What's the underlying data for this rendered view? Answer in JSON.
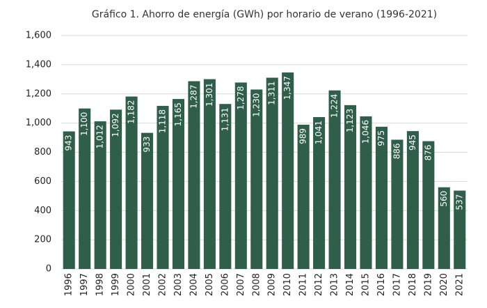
{
  "chart_data": {
    "type": "bar",
    "title": "Gráfico 1. Ahorro de energía (GWh) por horario de verano (1996-2021)",
    "categories": [
      "1996",
      "1997",
      "1998",
      "1999",
      "2000",
      "2001",
      "2002",
      "2003",
      "2004",
      "2005",
      "2006",
      "2007",
      "2008",
      "2009",
      "2010",
      "2011",
      "2012",
      "2013",
      "2014",
      "2015",
      "2016",
      "2017",
      "2018",
      "2019",
      "2020",
      "2021"
    ],
    "values": [
      943,
      1100,
      1012,
      1092,
      1182,
      933,
      1118,
      1165,
      1287,
      1301,
      1131,
      1278,
      1230,
      1311,
      1347,
      989,
      1041,
      1224,
      1123,
      1046,
      975,
      886,
      945,
      876,
      560,
      537
    ],
    "value_labels": [
      "943",
      "1,100",
      "1,012",
      "1,092",
      "1,182",
      "933",
      "1,118",
      "1,165",
      "1,287",
      "1,301",
      "1,131",
      "1,278",
      "1,230",
      "1,311",
      "1,347",
      "989",
      "1,041",
      "1,224",
      "1,123",
      "1,046",
      "975",
      "886",
      "945",
      "876",
      "560",
      "537"
    ],
    "color": "#2f5e4b",
    "ylim": [
      0,
      1600
    ],
    "yticks": [
      0,
      200,
      400,
      600,
      800,
      {
        "value": 1000,
        "label": "1,000"
      },
      {
        "value": 1200,
        "label": "1,200"
      },
      {
        "value": 1400,
        "label": "1,400"
      },
      {
        "value": 1600,
        "label": "1,600"
      }
    ],
    "grid": true
  }
}
